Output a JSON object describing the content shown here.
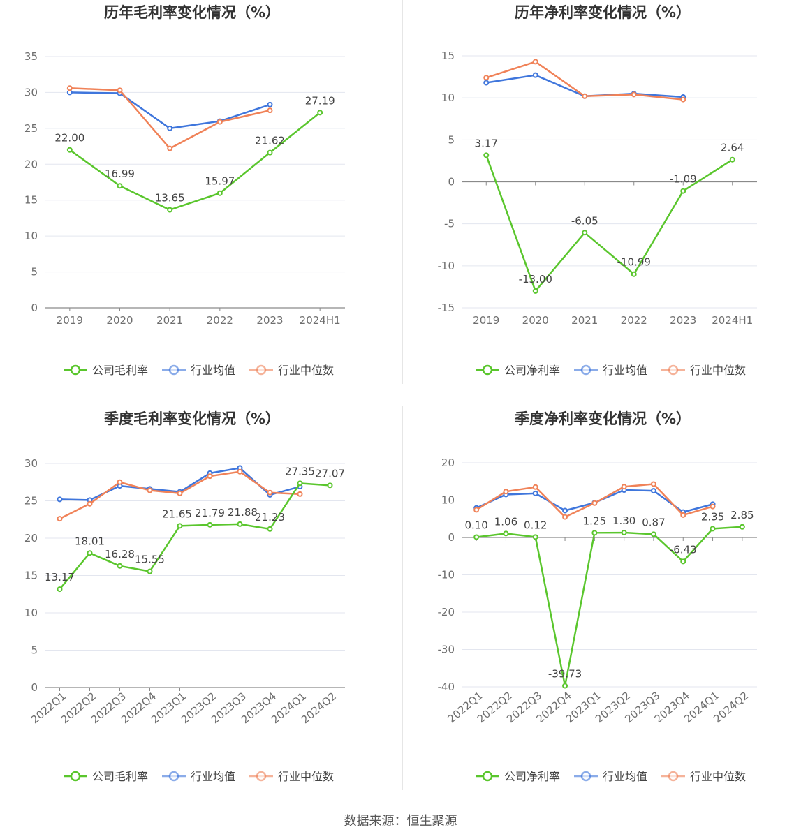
{
  "source": "数据来源：恒生聚源",
  "colors": {
    "company": "#5ac62d",
    "avg": "#3f76dc",
    "median": "#f08258"
  },
  "chart_data": [
    {
      "type": "line",
      "title": "历年毛利率变化情况（%）",
      "categories": [
        "2019",
        "2020",
        "2021",
        "2022",
        "2023",
        "2024H1"
      ],
      "ylim": [
        0,
        35
      ],
      "yticks": [
        0,
        5,
        10,
        15,
        20,
        25,
        30,
        35
      ],
      "series": [
        {
          "name": "公司毛利率",
          "values": [
            22.0,
            16.99,
            13.65,
            15.97,
            21.62,
            27.19
          ],
          "labels": [
            "22.00",
            "16.99",
            "13.65",
            "15.97",
            "21.62",
            "27.19"
          ]
        },
        {
          "name": "行业均值",
          "values": [
            30.0,
            29.9,
            25.0,
            26.0,
            28.3,
            null
          ]
        },
        {
          "name": "行业中位数",
          "values": [
            30.6,
            30.3,
            22.2,
            25.9,
            27.5,
            null
          ]
        }
      ],
      "legend": "bottom",
      "grid": true
    },
    {
      "type": "line",
      "title": "历年净利率变化情况（%）",
      "categories": [
        "2019",
        "2020",
        "2021",
        "2022",
        "2023",
        "2024H1"
      ],
      "ylim": [
        -15,
        15
      ],
      "yticks": [
        -15,
        -10,
        -5,
        0,
        5,
        10,
        15
      ],
      "series": [
        {
          "name": "公司净利率",
          "values": [
            3.17,
            -13.0,
            -6.05,
            -10.99,
            -1.09,
            2.64
          ],
          "labels": [
            "3.17",
            "-13.00",
            "-6.05",
            "-10.99",
            "-1.09",
            "2.64"
          ]
        },
        {
          "name": "行业均值",
          "values": [
            11.8,
            12.7,
            10.2,
            10.5,
            10.1,
            null
          ]
        },
        {
          "name": "行业中位数",
          "values": [
            12.4,
            14.3,
            10.2,
            10.4,
            9.8,
            null
          ]
        }
      ],
      "legend": "bottom",
      "grid": true
    },
    {
      "type": "line",
      "title": "季度毛利率变化情况（%）",
      "categories": [
        "2022Q1",
        "2022Q2",
        "2022Q3",
        "2022Q4",
        "2023Q1",
        "2023Q2",
        "2023Q3",
        "2023Q4",
        "2024Q1",
        "2024Q2"
      ],
      "ylim": [
        0,
        30
      ],
      "yticks": [
        0,
        5,
        10,
        15,
        20,
        25,
        30
      ],
      "series": [
        {
          "name": "公司毛利率",
          "values": [
            13.17,
            18.01,
            16.28,
            15.55,
            21.65,
            21.79,
            21.88,
            21.23,
            27.35,
            27.07
          ],
          "labels": [
            "13.17",
            "18.01",
            "16.28",
            "15.55",
            "21.65",
            "21.79",
            "21.88",
            "21.23",
            "27.35",
            "27.07"
          ]
        },
        {
          "name": "行业均值",
          "values": [
            25.2,
            25.1,
            27.0,
            26.6,
            26.2,
            28.7,
            29.4,
            25.8,
            26.9,
            null
          ]
        },
        {
          "name": "行业中位数",
          "values": [
            22.6,
            24.6,
            27.5,
            26.4,
            26.0,
            28.3,
            28.9,
            26.1,
            25.9,
            null
          ]
        }
      ],
      "legend": "bottom",
      "grid": true
    },
    {
      "type": "line",
      "title": "季度净利率变化情况（%）",
      "categories": [
        "2022Q1",
        "2022Q2",
        "2022Q3",
        "2022Q4",
        "2023Q1",
        "2023Q2",
        "2023Q3",
        "2023Q4",
        "2024Q1",
        "2024Q2"
      ],
      "ylim": [
        -40,
        20
      ],
      "yticks": [
        -40,
        -30,
        -20,
        -10,
        0,
        10,
        20
      ],
      "series": [
        {
          "name": "公司净利率",
          "values": [
            0.1,
            1.06,
            0.12,
            -39.73,
            1.25,
            1.3,
            0.87,
            -6.43,
            2.35,
            2.85
          ],
          "labels": [
            "0.10",
            "1.06",
            "0.12",
            "-39.73",
            "1.25",
            "1.30",
            "0.87",
            "-6.43",
            "2.35",
            "2.85"
          ]
        },
        {
          "name": "行业均值",
          "values": [
            7.9,
            11.5,
            11.8,
            7.2,
            9.3,
            12.7,
            12.5,
            6.8,
            8.9,
            null
          ]
        },
        {
          "name": "行业中位数",
          "values": [
            7.4,
            12.3,
            13.5,
            5.5,
            9.2,
            13.6,
            14.3,
            6.0,
            8.3,
            null
          ]
        }
      ],
      "legend": "bottom",
      "grid": true
    }
  ]
}
